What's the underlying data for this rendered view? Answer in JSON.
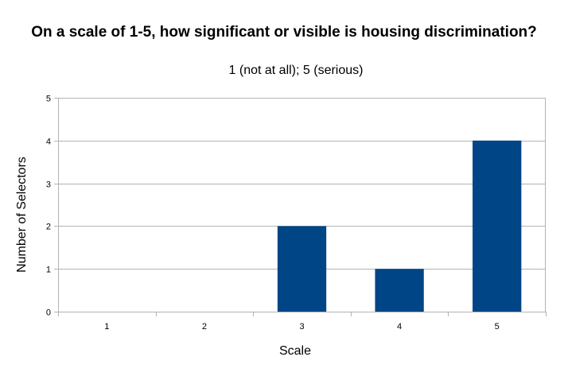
{
  "chart_data": {
    "type": "bar",
    "title": "On a scale of 1-5, how significant or visible is housing discrimination?",
    "subtitle": "1 (not at all); 5 (serious)",
    "xlabel": "Scale",
    "ylabel": "Number of Selectors",
    "categories": [
      "1",
      "2",
      "3",
      "4",
      "5"
    ],
    "values": [
      0,
      0,
      2,
      1,
      4
    ],
    "ylim": [
      0,
      5
    ],
    "yticks": [
      "0",
      "1",
      "2",
      "3",
      "4",
      "5"
    ],
    "grid": true,
    "legend": "none",
    "bar_color": "#004586",
    "grid_color": "#b3b3b3"
  }
}
